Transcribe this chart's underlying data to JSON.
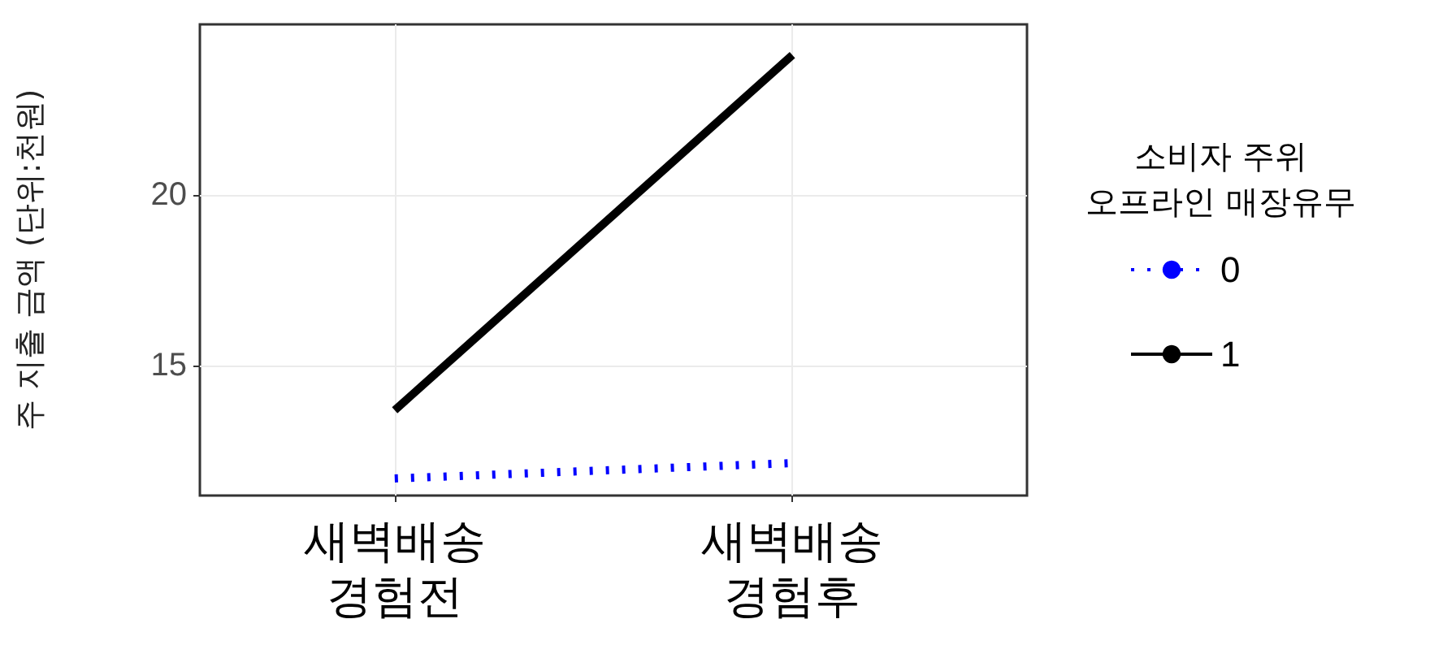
{
  "chart_data": {
    "type": "line",
    "ylabel": "주 지출 금액 (단위:천원)",
    "legend_title": "소비자 주위\n오프라인 매장유무",
    "categories": [
      "새벽배송\n경험전",
      "새벽배송\n경험후"
    ],
    "series": [
      {
        "name": "0",
        "color": "#0000ff",
        "values": [
          11.7,
          12.15
        ],
        "line_style": "dotted"
      },
      {
        "name": "1",
        "color": "#000000",
        "values": [
          13.7,
          24.1
        ],
        "line_style": "solid"
      }
    ],
    "ylim": [
      11.2,
      25
    ],
    "yticks": [
      15,
      20
    ],
    "grid": true,
    "legend": "right",
    "marker": "none"
  }
}
